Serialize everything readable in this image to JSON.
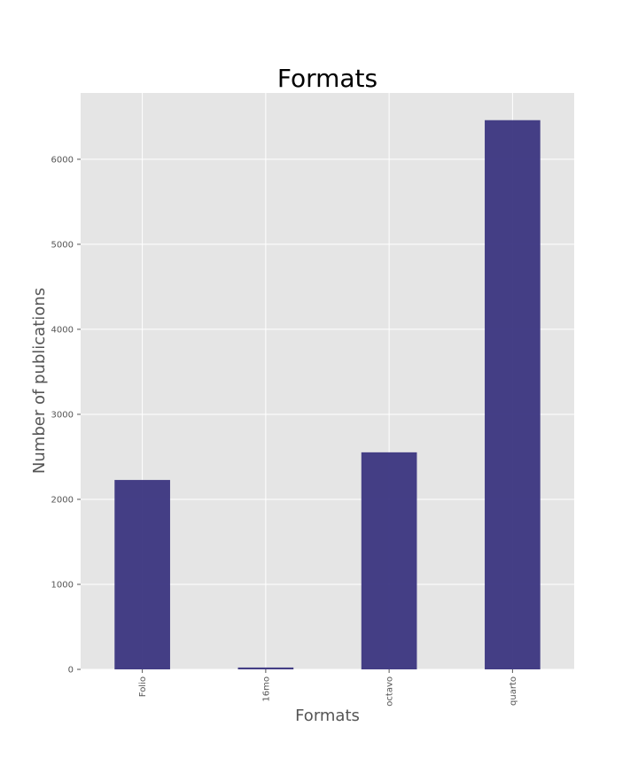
{
  "chart_data": {
    "type": "bar",
    "title": "Formats",
    "xlabel": "Formats",
    "ylabel": "Number of publications",
    "categories": [
      "Folio",
      "16mo",
      "octavo",
      "quarto"
    ],
    "values": [
      2228,
      22,
      2553,
      6460
    ],
    "ylim": [
      0,
      6780
    ],
    "yticks": [
      0,
      1000,
      2000,
      3000,
      4000,
      5000,
      6000
    ],
    "grid": true,
    "colors": {
      "bar": "#3b3580",
      "plot_background": "#e5e5e5",
      "grid": "#ffffff"
    }
  }
}
